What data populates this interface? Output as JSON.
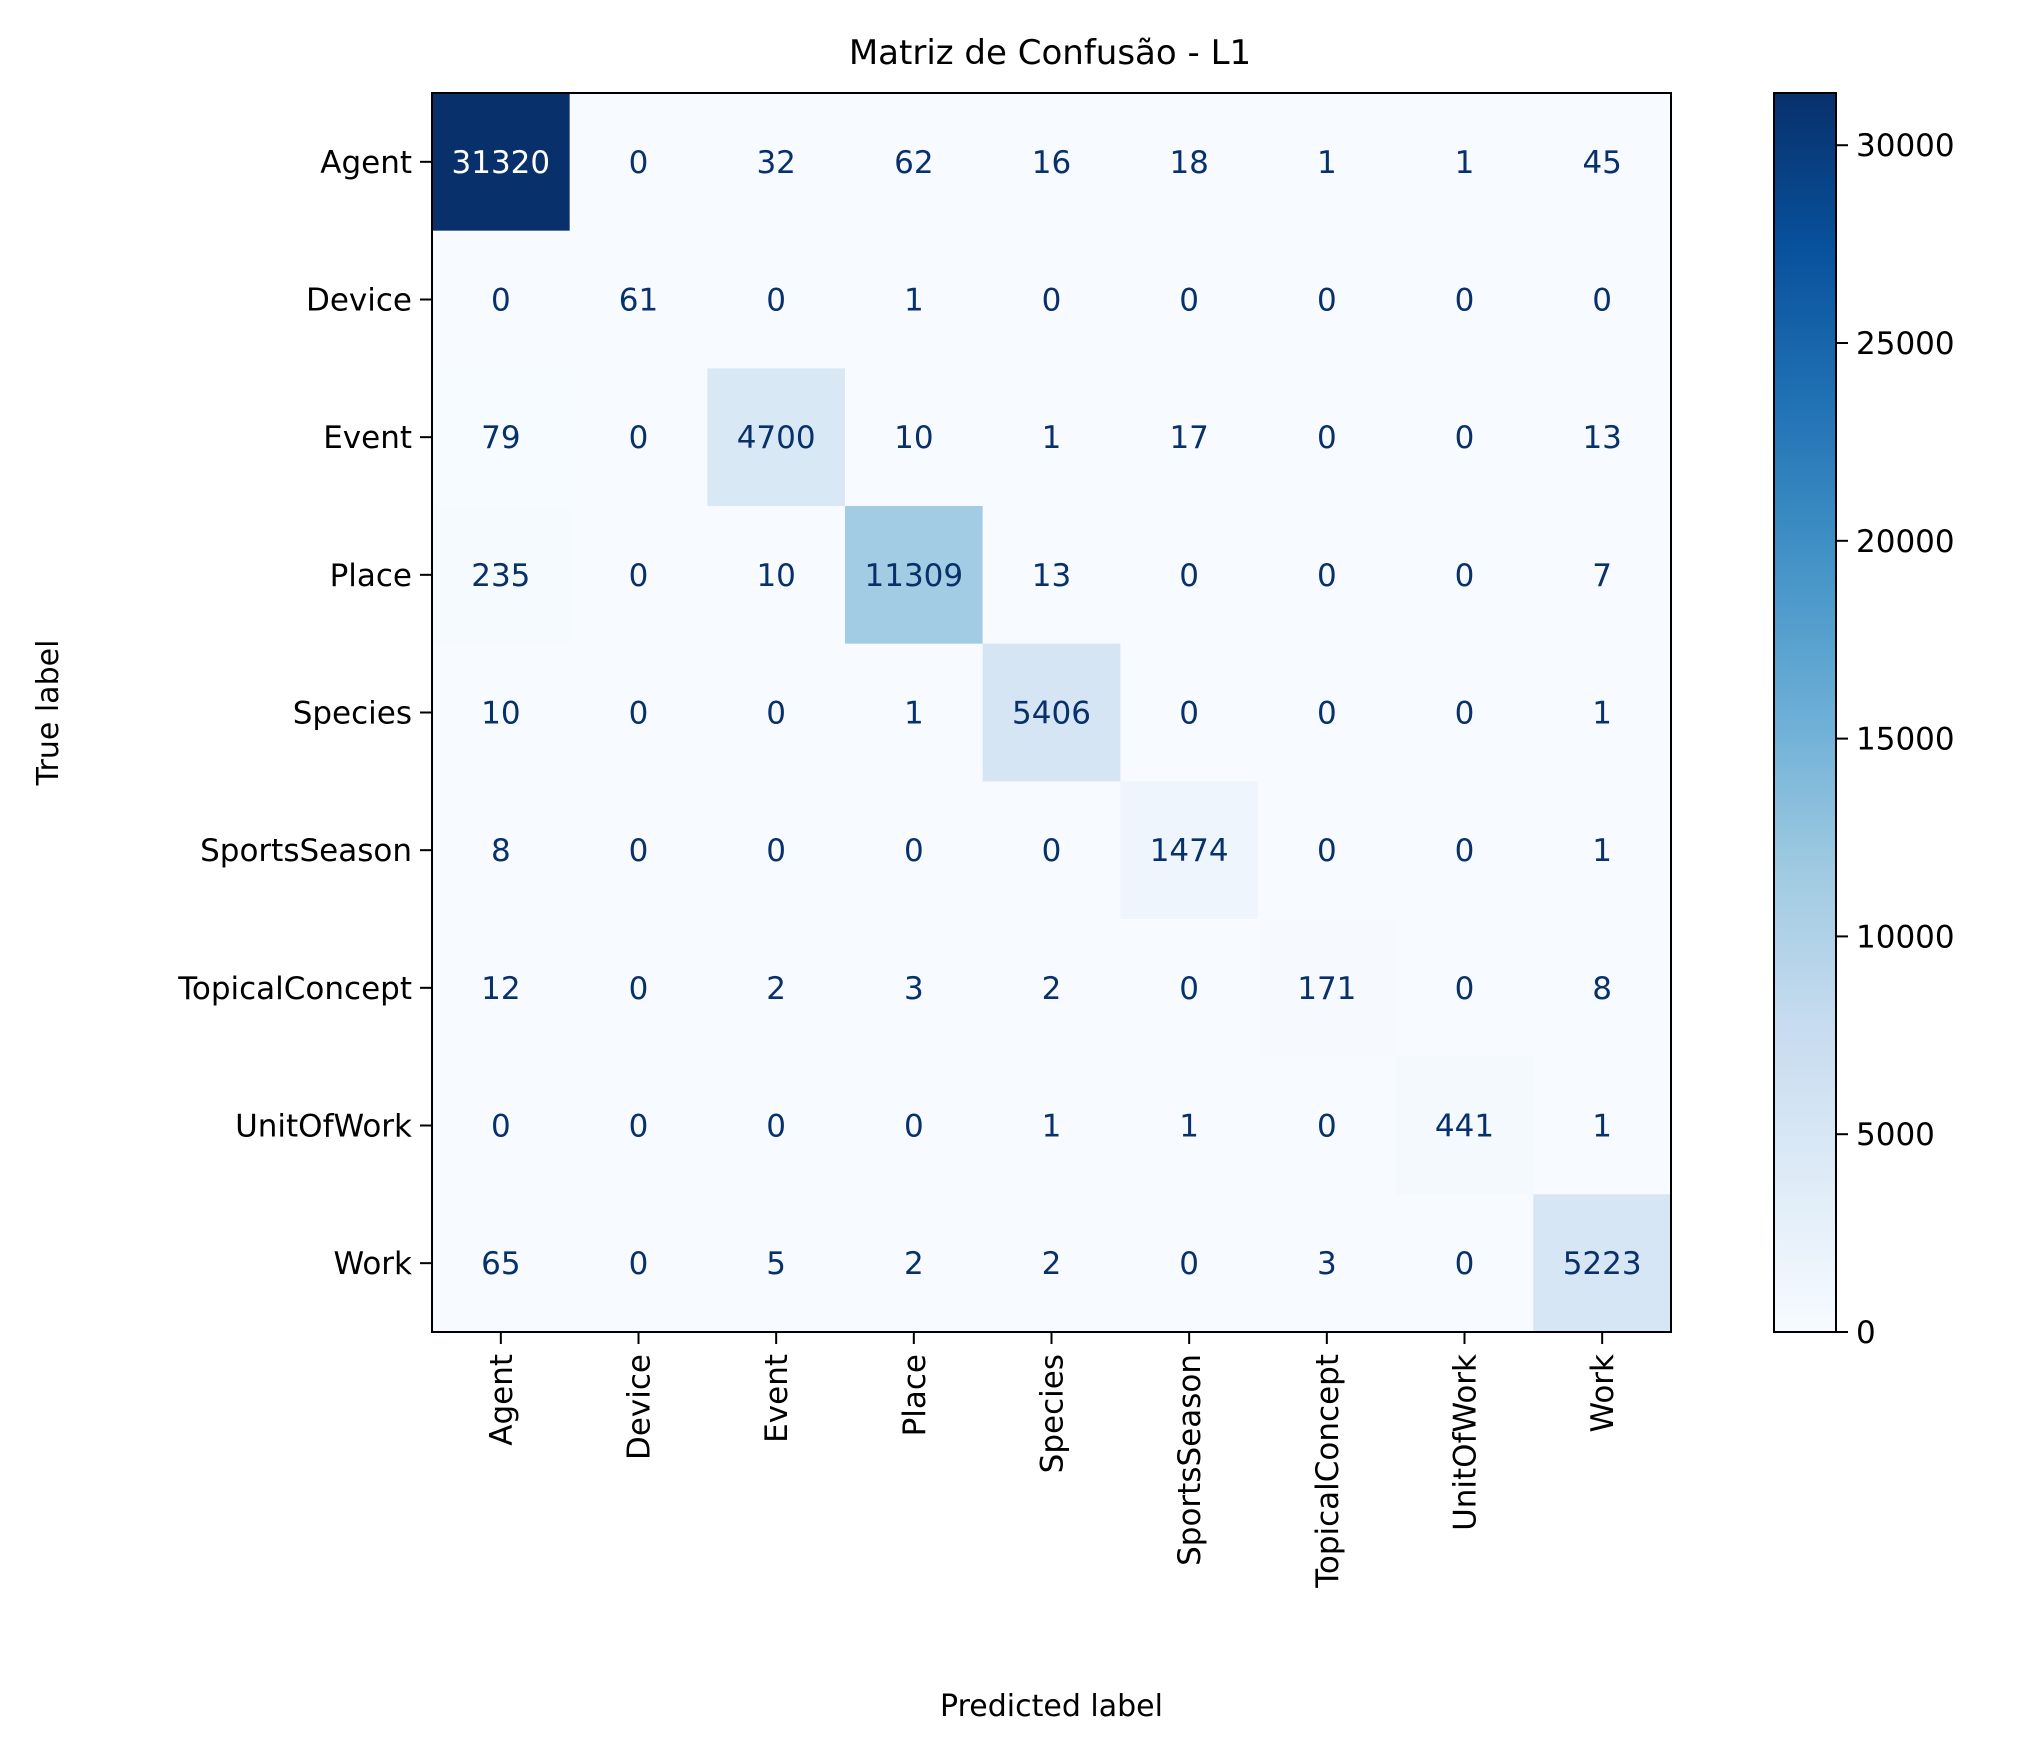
{
  "chart_data": {
    "type": "heatmap",
    "title": "Matriz de Confusão - L1",
    "xlabel": "Predicted label",
    "ylabel": "True label",
    "x_categories": [
      "Agent",
      "Device",
      "Event",
      "Place",
      "Species",
      "SportsSeason",
      "TopicalConcept",
      "UnitOfWork",
      "Work"
    ],
    "y_categories": [
      "Agent",
      "Device",
      "Event",
      "Place",
      "Species",
      "SportsSeason",
      "TopicalConcept",
      "UnitOfWork",
      "Work"
    ],
    "values": [
      [
        31320,
        0,
        32,
        62,
        16,
        18,
        1,
        1,
        45
      ],
      [
        0,
        61,
        0,
        1,
        0,
        0,
        0,
        0,
        0
      ],
      [
        79,
        0,
        4700,
        10,
        1,
        17,
        0,
        0,
        13
      ],
      [
        235,
        0,
        10,
        11309,
        13,
        0,
        0,
        0,
        7
      ],
      [
        10,
        0,
        0,
        1,
        5406,
        0,
        0,
        0,
        1
      ],
      [
        8,
        0,
        0,
        0,
        0,
        1474,
        0,
        0,
        1
      ],
      [
        12,
        0,
        2,
        3,
        2,
        0,
        171,
        0,
        8
      ],
      [
        0,
        0,
        0,
        0,
        1,
        1,
        0,
        441,
        1
      ],
      [
        65,
        0,
        5,
        2,
        2,
        0,
        3,
        0,
        5223
      ]
    ],
    "colormap": "Blues",
    "color_low": "#f7fbff",
    "color_high": "#08306b",
    "text_dark_color": "#08306b",
    "text_light_color": "#ffffff",
    "colorbar": {
      "range": [
        0,
        31320
      ],
      "ticks": [
        0,
        5000,
        10000,
        15000,
        20000,
        25000,
        30000
      ]
    }
  }
}
